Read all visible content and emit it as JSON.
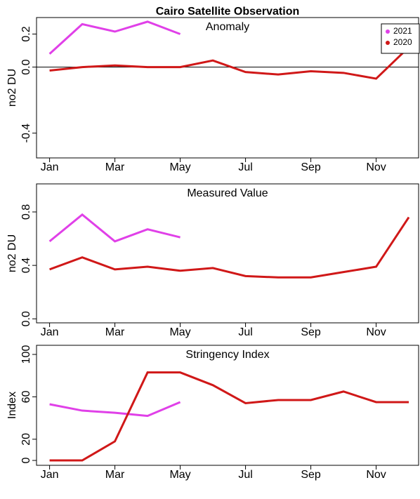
{
  "chart_data": [
    {
      "type": "line",
      "title": "Cairo Satellite Observation",
      "subtitle": "Anomaly",
      "y_label": "no2  DU",
      "x": [
        1,
        2,
        3,
        4,
        5,
        6,
        7,
        8,
        9,
        10,
        11,
        12
      ],
      "xlim": [
        0.6,
        12.3
      ],
      "xticks": [
        {
          "value": 1,
          "label": "Jan"
        },
        {
          "value": 3,
          "label": "Mar"
        },
        {
          "value": 5,
          "label": "May"
        },
        {
          "value": 7,
          "label": "Jul"
        },
        {
          "value": 9,
          "label": "Sep"
        },
        {
          "value": 11,
          "label": "Nov"
        }
      ],
      "ylim": [
        -0.55,
        0.3
      ],
      "yticks": [
        -0.4,
        {
          "value": 0,
          "label": "0.0"
        },
        0.2
      ],
      "zero_line": true,
      "legend": "top-right",
      "series": [
        {
          "name": "2021",
          "color": "#e040e8",
          "values": [
            0.08,
            0.26,
            0.215,
            0.275,
            0.2,
            null,
            null,
            null,
            null,
            null,
            null,
            null
          ]
        },
        {
          "name": "2020",
          "color": "#d01818",
          "values": [
            -0.021,
            0,
            0.01,
            0,
            0,
            0.04,
            -0.03,
            -0.045,
            -0.025,
            -0.035,
            -0.07,
            0.12
          ]
        }
      ]
    },
    {
      "type": "line",
      "subtitle": "Measured Value",
      "y_label": "no2  DU",
      "x": [
        1,
        2,
        3,
        4,
        5,
        6,
        7,
        8,
        9,
        10,
        11,
        12
      ],
      "xlim": [
        0.6,
        12.3
      ],
      "xticks": [
        {
          "value": 1,
          "label": "Jan"
        },
        {
          "value": 3,
          "label": "Mar"
        },
        {
          "value": 5,
          "label": "May"
        },
        {
          "value": 7,
          "label": "Jul"
        },
        {
          "value": 9,
          "label": "Sep"
        },
        {
          "value": 11,
          "label": "Nov"
        }
      ],
      "ylim": [
        -0.03,
        1.01
      ],
      "yticks": [
        {
          "value": 0,
          "label": "0.0"
        },
        0.4,
        0.8
      ],
      "series": [
        {
          "color": "#e040e8",
          "values": [
            0.58,
            0.78,
            0.58,
            0.67,
            0.61,
            null,
            null,
            null,
            null,
            null,
            null,
            null
          ]
        },
        {
          "color": "#d01818",
          "values": [
            0.37,
            0.46,
            0.37,
            0.39,
            0.36,
            0.38,
            0.32,
            0.31,
            0.31,
            0.35,
            0.39,
            0.76
          ]
        }
      ]
    },
    {
      "type": "line",
      "subtitle": "Stringency Index",
      "y_label": "Index",
      "x": [
        1,
        2,
        3,
        4,
        5,
        6,
        7,
        8,
        9,
        10,
        11,
        12
      ],
      "xlim": [
        0.6,
        12.3
      ],
      "xticks": [
        {
          "value": 1,
          "label": "Jan"
        },
        {
          "value": 3,
          "label": "Mar"
        },
        {
          "value": 5,
          "label": "May"
        },
        {
          "value": 7,
          "label": "Jul"
        },
        {
          "value": 9,
          "label": "Sep"
        },
        {
          "value": 11,
          "label": "Nov"
        }
      ],
      "ylim": [
        -4.6,
        108.6
      ],
      "yticks": [
        0,
        20,
        60,
        100
      ],
      "series": [
        {
          "color": "#e040e8",
          "values": [
            53,
            47,
            45,
            42,
            55,
            null,
            null,
            null,
            null,
            null,
            null,
            null
          ]
        },
        {
          "color": "#d01818",
          "values": [
            0,
            0,
            18,
            83,
            83,
            71,
            54,
            57,
            57,
            65,
            55,
            55
          ]
        }
      ]
    }
  ]
}
